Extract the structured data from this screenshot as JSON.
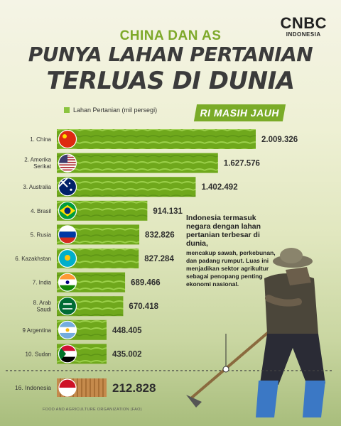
{
  "brand": {
    "logo": "CNBC",
    "sub": "INDONESIA"
  },
  "header": {
    "kicker": "CHINA DAN AS",
    "headline_1": "PUNYA LAHAN PERTANIAN",
    "headline_2": "TERLUAS DI DUNIA",
    "badge": "RI MASIH JAUH"
  },
  "note": {
    "lead": "Indonesia termasuk negara dengan lahan pertanian terbesar di dunia,",
    "body": "mencakup sawah, perkebunan, dan padang rumput. Luas ini menjadikan sektor agrikultur sebagai penopang penting ekonomi nasional."
  },
  "source": "FOOD AND AGRICULTURE ORGANIZATION (FAO)",
  "colors": {
    "accent": "#7aab28",
    "title": "#3b3b3b",
    "kicker": "#7ea92a"
  },
  "chart_data": {
    "type": "bar",
    "orientation": "horizontal",
    "legend": [
      "Lahan Pertanian (mil persegi)"
    ],
    "legend_placement": "top-left",
    "categories": [
      "1. China",
      "2. Amerika Serikat",
      "3. Australia",
      "4. Brasil",
      "5. Rusia",
      "6. Kazakhstan",
      "7. India",
      "8. Arab Saudi",
      "9 Argentina",
      "10. Sudan",
      "16. Indonesia"
    ],
    "value_labels": [
      "2.009.326",
      "1.627.576",
      "1.402.492",
      "914.131",
      "832.826",
      "827.284",
      "689.466",
      "670.418",
      "448.405",
      "435.002",
      "212.828"
    ],
    "values": [
      2009326,
      1627576,
      1402492,
      914131,
      832826,
      827284,
      689466,
      670418,
      448405,
      435002,
      212828
    ],
    "flags": [
      "china",
      "usa",
      "australia",
      "brazil",
      "russia",
      "kazakhstan",
      "india",
      "saudi-arabia",
      "argentina",
      "sudan",
      "indonesia"
    ],
    "highlight": "16. Indonesia"
  }
}
